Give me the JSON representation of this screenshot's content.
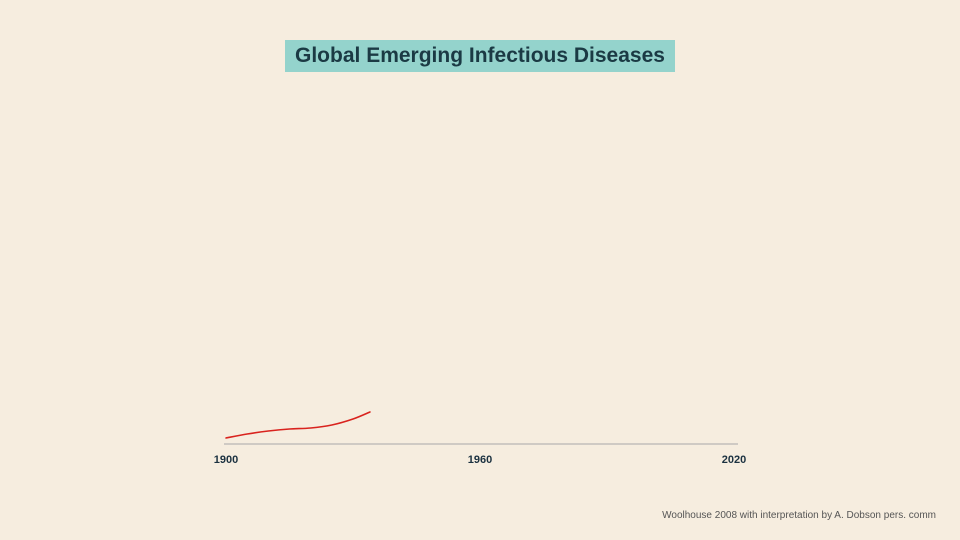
{
  "title": "Global Emerging Infectious Diseases",
  "source": "Woolhouse 2008 with interpretation by A. Dobson pers. comm",
  "colors": {
    "background": "#f6eddf",
    "title_bg": "#94d3cc",
    "title_text": "#1b3a44",
    "line": "#d9231e",
    "axis": "#a8a8a8"
  },
  "chart_data": {
    "type": "line",
    "title": "Global Emerging Infectious Diseases",
    "xlabel": "",
    "ylabel": "",
    "xlim": [
      1900,
      2020
    ],
    "x_ticks": [
      1900,
      1960,
      2020
    ],
    "y_axis_visible": false,
    "grid": false,
    "series": [
      {
        "x": [
          1900,
          1905,
          1910,
          1915,
          1920,
          1925,
          1930,
          1934
        ],
        "y": [
          0.0,
          0.4,
          0.7,
          0.9,
          1.0,
          1.3,
          1.9,
          2.6
        ]
      }
    ]
  }
}
